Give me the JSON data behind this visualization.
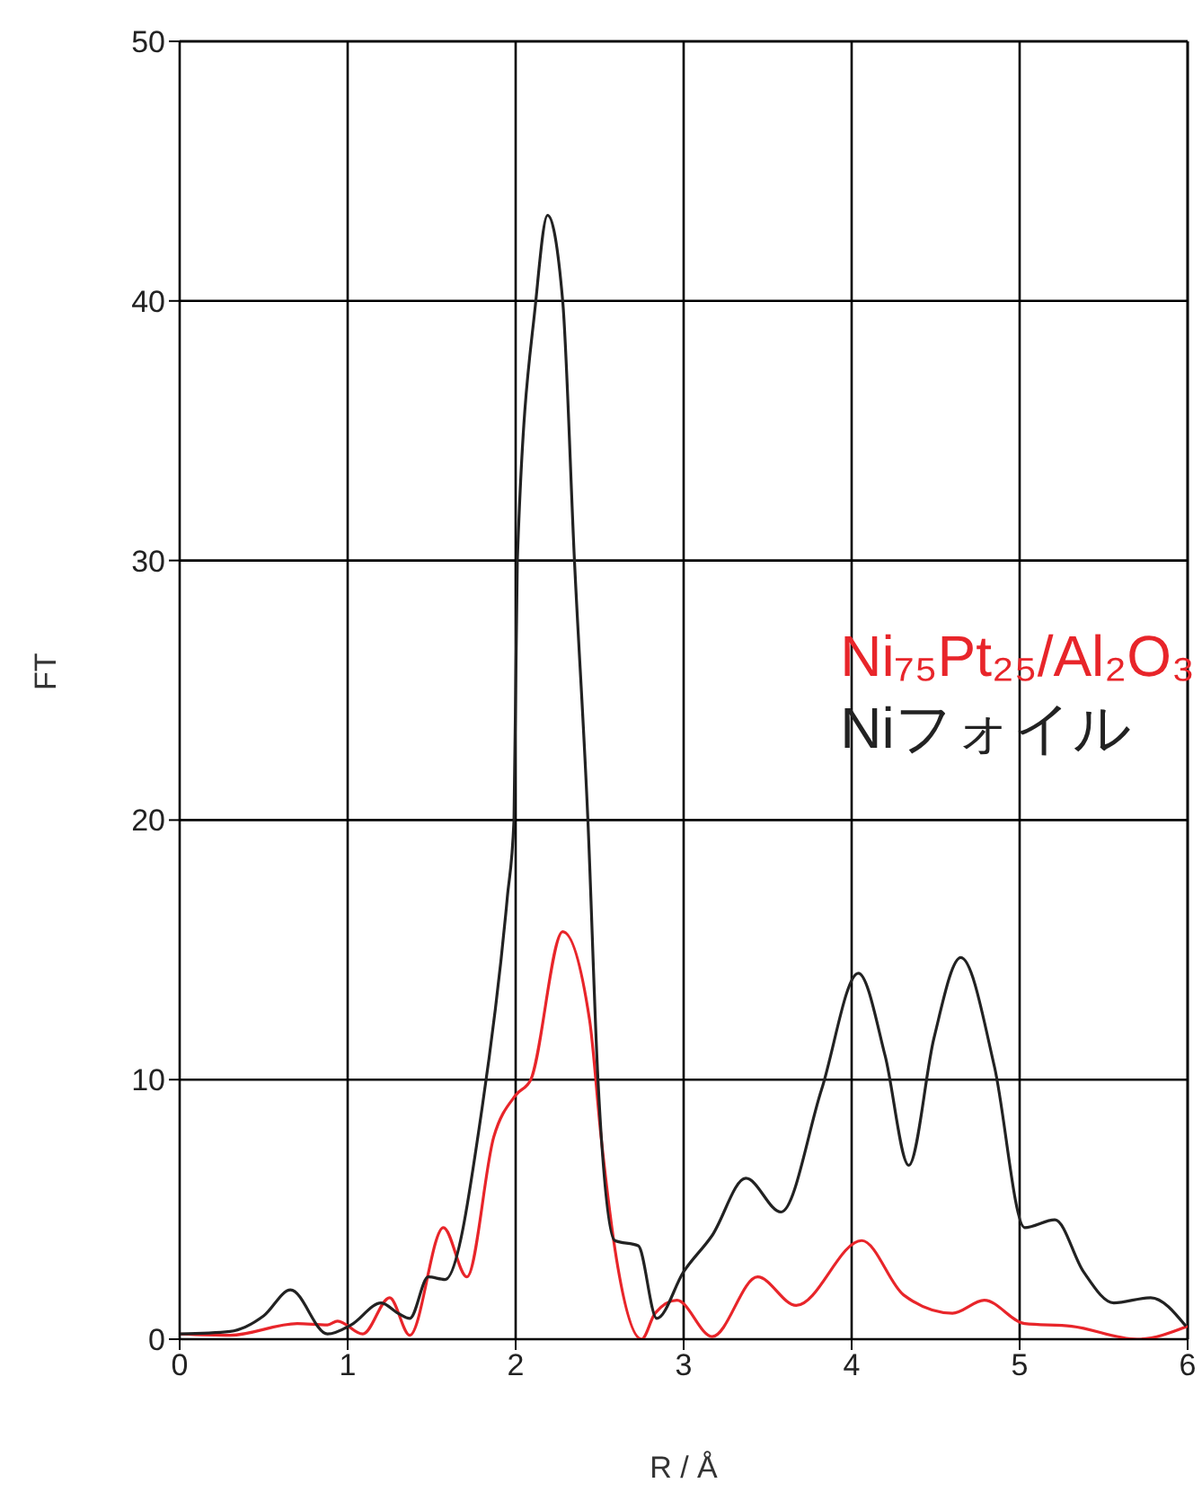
{
  "chart_data": {
    "type": "line",
    "xlabel": "R / Å",
    "ylabel": "FT",
    "xlim": [
      0,
      6
    ],
    "xticks": [
      0,
      1,
      2,
      3,
      4,
      5,
      6
    ],
    "ylim": [
      0,
      50
    ],
    "yticks": [
      0,
      10,
      20,
      30,
      40,
      50
    ],
    "grid": true,
    "legend": "right",
    "marker": "none",
    "line_style": "solid",
    "series": [
      {
        "name": "Ni₇₅Pt₂₅/Al₂O₃",
        "color": "#e8252a",
        "x": [
          0,
          0.3,
          0.7,
          0.88,
          0.94,
          1.09,
          1.25,
          1.37,
          1.57,
          1.71,
          1.87,
          2.0,
          2.09,
          2.28,
          2.44,
          2.51,
          2.6,
          2.75,
          2.83,
          2.96,
          3.17,
          3.44,
          3.67,
          4.06,
          4.31,
          4.6,
          4.79,
          5.03,
          5.31,
          5.7,
          6.0
        ],
        "values": [
          0.2,
          0.15,
          0.6,
          0.55,
          0.7,
          0.2,
          1.6,
          0.15,
          4.3,
          2.4,
          7.8,
          9.4,
          10.0,
          15.7,
          12.3,
          7.7,
          3.1,
          0,
          1.0,
          1.5,
          0.1,
          2.4,
          1.3,
          3.8,
          1.7,
          1.0,
          1.5,
          0.6,
          0.5,
          0,
          0.5
        ]
      },
      {
        "name": "Niフォイル",
        "color": "#222222",
        "x": [
          0,
          0.3,
          0.5,
          0.66,
          0.88,
          1.02,
          1.2,
          1.3,
          1.37,
          1.48,
          1.58,
          1.8,
          1.95,
          1.99,
          2.01,
          2.12,
          2.19,
          2.28,
          2.35,
          2.43,
          2.49,
          2.59,
          2.73,
          2.84,
          3.0,
          3.17,
          3.37,
          3.58,
          3.82,
          4.04,
          4.2,
          4.34,
          4.49,
          4.65,
          4.85,
          5.03,
          5.21,
          5.38,
          5.56,
          5.78,
          5.99
        ],
        "values": [
          0.2,
          0.3,
          0.9,
          1.9,
          0.2,
          0.55,
          1.4,
          1.0,
          0.8,
          2.4,
          2.3,
          8.9,
          17,
          20,
          30,
          40,
          43.3,
          40,
          30,
          20,
          10,
          3.8,
          3.6,
          0.8,
          2.6,
          4.0,
          6.2,
          4.9,
          9.6,
          14.1,
          10.9,
          6.7,
          11.6,
          14.7,
          10.5,
          4.3,
          4.6,
          2.6,
          1.4,
          1.6,
          0.5
        ]
      }
    ]
  }
}
